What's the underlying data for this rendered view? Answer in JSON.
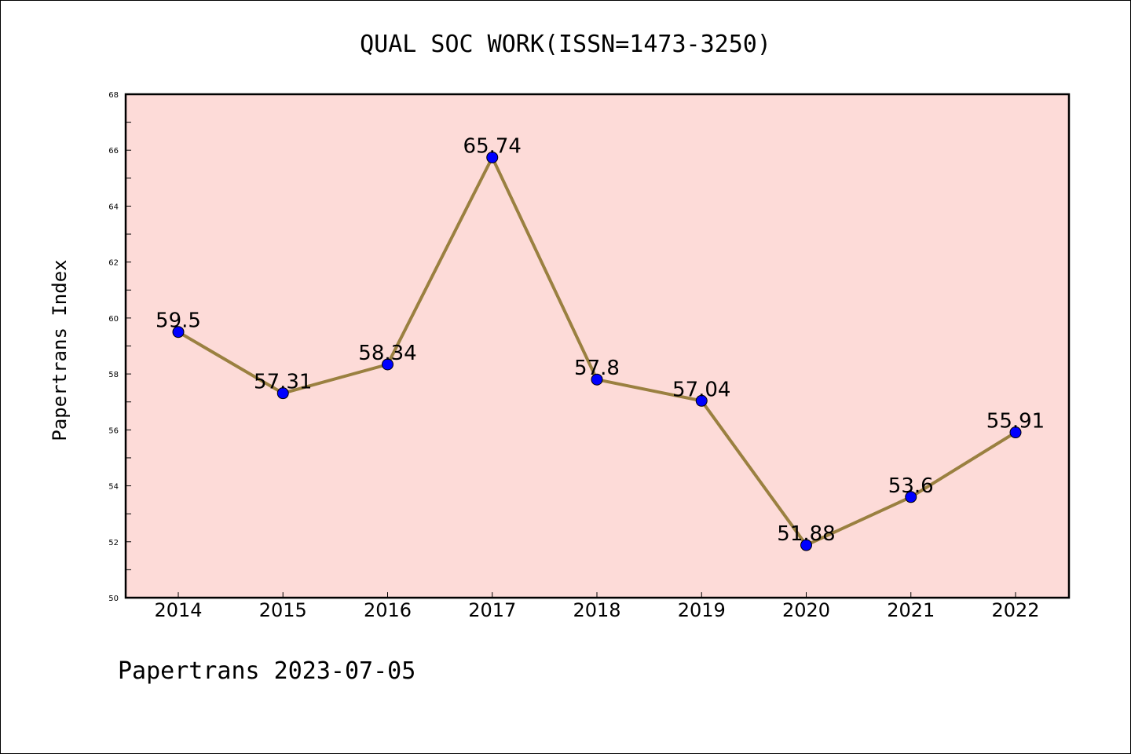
{
  "chart_data": {
    "type": "line",
    "title": "QUAL SOC WORK(ISSN=1473-3250)",
    "xlabel": "",
    "ylabel": "Papertrans Index",
    "categories": [
      "2014",
      "2015",
      "2016",
      "2017",
      "2018",
      "2019",
      "2020",
      "2021",
      "2022"
    ],
    "values": [
      59.5,
      57.31,
      58.34,
      65.74,
      57.8,
      57.04,
      51.88,
      53.6,
      55.91
    ],
    "data_labels": [
      "59.5",
      "57.31",
      "58.34",
      "65.74",
      "57.8",
      "57.04",
      "51.88",
      "53.6",
      "55.91"
    ],
    "ylim": [
      50,
      68
    ],
    "yticks": [
      "50",
      "52",
      "54",
      "56",
      "58",
      "60",
      "62",
      "64",
      "66",
      "68"
    ],
    "grid": false,
    "colors": {
      "plot_background": "#fddbd8",
      "line": "#9a8040",
      "marker": "#0000ff"
    }
  },
  "footer": "Papertrans 2023-07-05"
}
